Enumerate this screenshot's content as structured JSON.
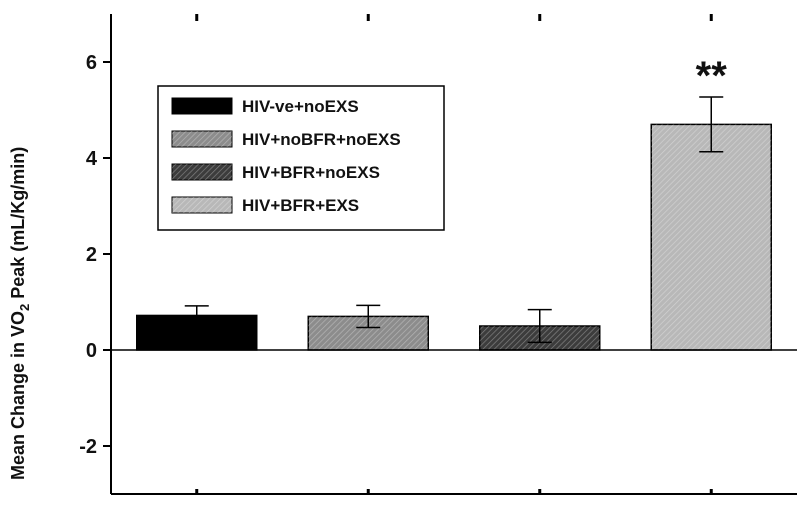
{
  "chart_data": {
    "type": "bar",
    "title": "",
    "xlabel": "",
    "ylabel": "Mean Change in VO2 Peak (mL/Kg/min)",
    "ylabel_parts": {
      "before": "Mean Change in VO",
      "sub": "2",
      "after": " Peak (mL/Kg/min)"
    },
    "ylim": [
      -3.0,
      7.0
    ],
    "yticks": [
      -2,
      0,
      2,
      4,
      6
    ],
    "grid": false,
    "legend_position": "upper-left",
    "categories": [
      "HIV-ve+noEXS",
      "HIV+noBFR+noEXS",
      "HIV+BFR+noEXS",
      "HIV+BFR+EXS"
    ],
    "values": [
      0.72,
      0.7,
      0.5,
      4.7
    ],
    "errors": [
      0.2,
      0.23,
      0.34,
      0.57
    ],
    "fills": [
      "#000000",
      "#8c8c8c",
      "#3c3c3c",
      "#b8b8b8"
    ],
    "hatched": [
      false,
      true,
      true,
      true
    ],
    "annotations": [
      {
        "category_index": 3,
        "text": "**"
      }
    ]
  }
}
